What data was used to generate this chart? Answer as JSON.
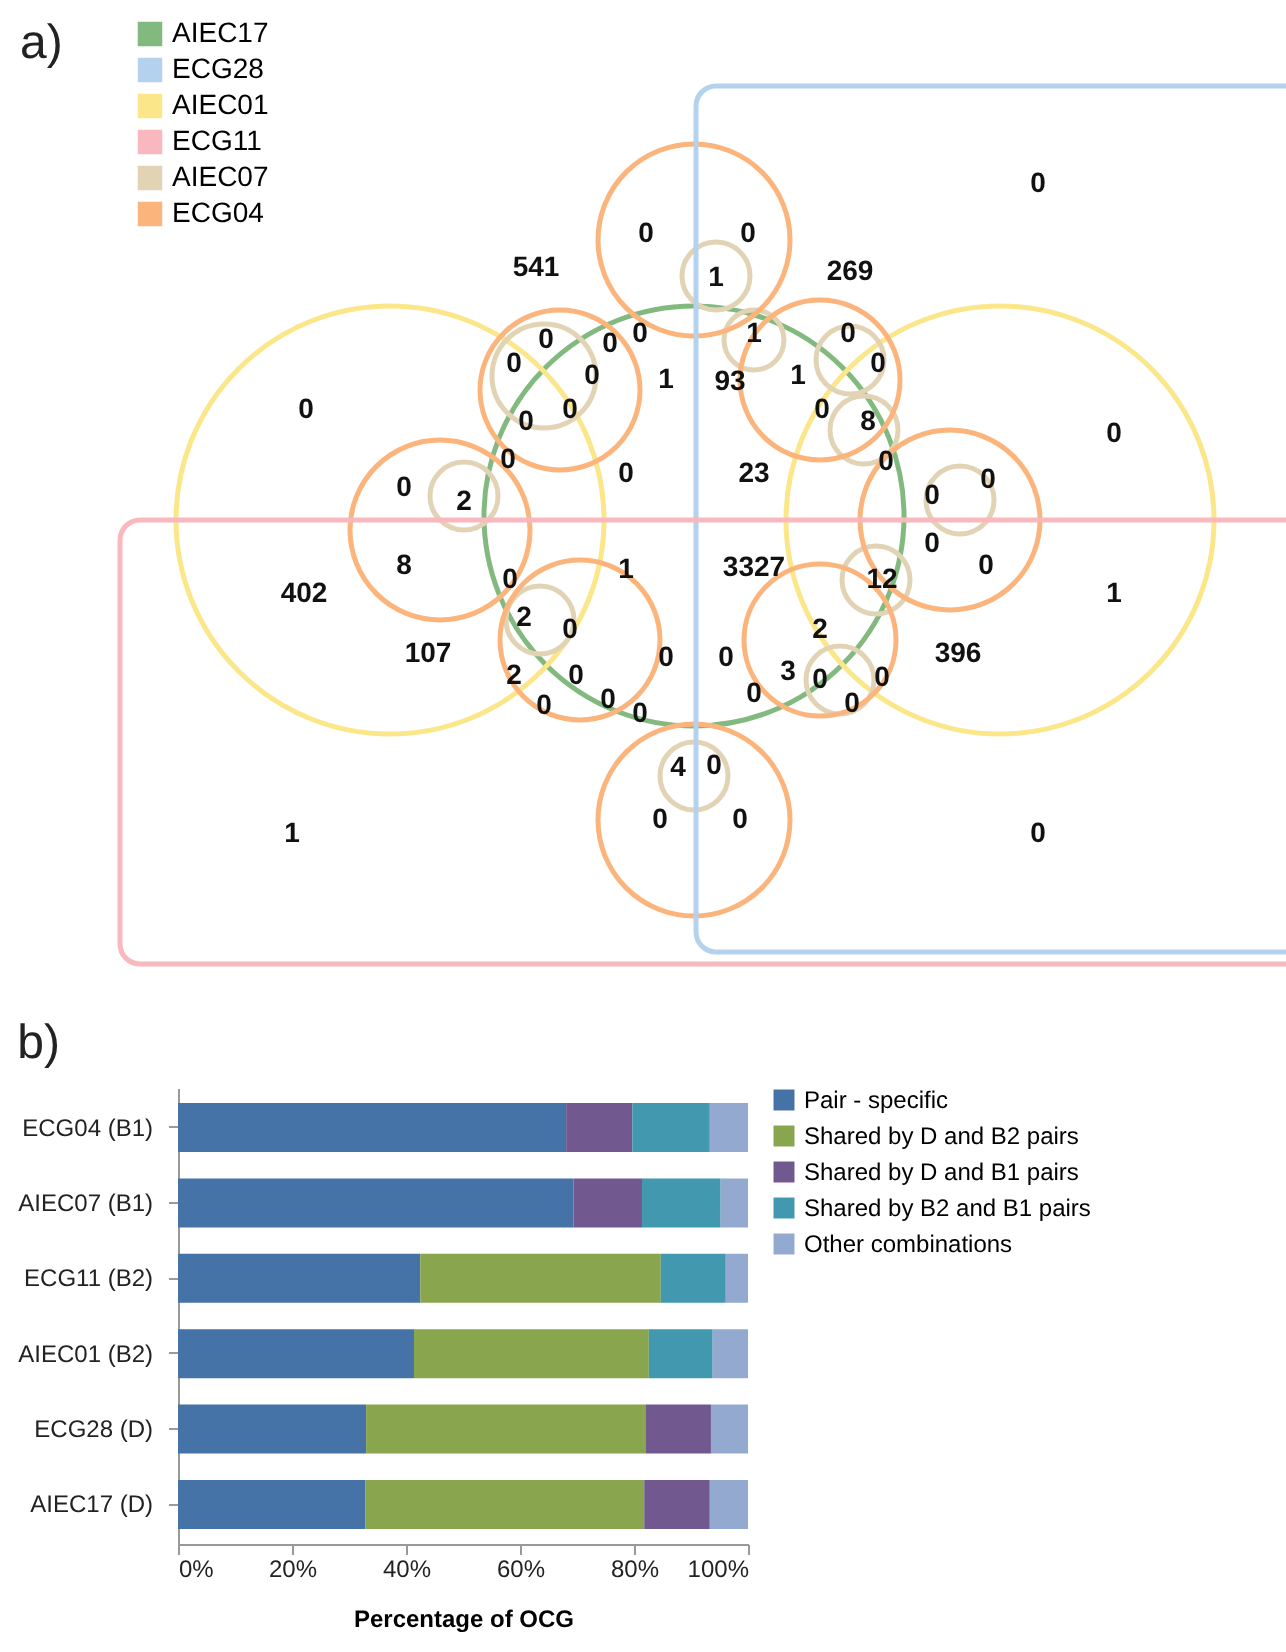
{
  "chart_data": [
    {
      "type": "other",
      "title": "a)",
      "categories": [
        "AIEC17",
        "ECG28",
        "AIEC01",
        "ECG11",
        "AIEC07",
        "ECG04"
      ],
      "colors": [
        "#82b97f",
        "#b4d2ee",
        "#fce68a",
        "#f9b8bd",
        "#e2d3b5",
        "#fbb57c"
      ],
      "annotations": [
        "541",
        "0",
        "0",
        "1",
        "269",
        "0",
        "0",
        "0",
        "0",
        "0",
        "0",
        "0",
        "0",
        "0",
        "0",
        "0",
        "2",
        "1",
        "93",
        "1",
        "1",
        "0",
        "0",
        "0",
        "8",
        "0",
        "0",
        "0",
        "0",
        "0",
        "0",
        "23",
        "402",
        "8",
        "107",
        "0",
        "2",
        "0",
        "2",
        "0",
        "0",
        "0",
        "0",
        "1",
        "1",
        "0",
        "1",
        "3327",
        "12",
        "2",
        "396",
        "0",
        "0",
        "0",
        "3",
        "0",
        "0",
        "0",
        "4",
        "0",
        "0",
        "0",
        "0"
      ]
    },
    {
      "type": "bar",
      "title": "b)",
      "orientation": "horizontal",
      "stacked": true,
      "legend": "right",
      "categories": [
        "ECG04 (B1)",
        "AIEC07 (B1)",
        "ECG11 (B2)",
        "AIEC01 (B2)",
        "ECG28 (D)",
        "AIEC17 (D)"
      ],
      "series": [
        {
          "name": "Pair - specific",
          "color": "#4572a7",
          "values": [
            68.1,
            69.4,
            42.5,
            41.4,
            33.0,
            32.9
          ]
        },
        {
          "name": "Shared by D and B2 pairs",
          "color": "#89a54e",
          "values": [
            null,
            null,
            42.2,
            41.2,
            49.0,
            48.9
          ]
        },
        {
          "name": "Shared by D and B1 pairs",
          "color": "#71588f",
          "values": [
            11.6,
            12.0,
            null,
            null,
            11.5,
            11.5
          ]
        },
        {
          "name": "Shared by B2 and B1 pairs",
          "color": "#4198af",
          "values": [
            13.6,
            13.8,
            11.4,
            11.2,
            null,
            null
          ]
        },
        {
          "name": "Other combinations",
          "color": "#93a9cf",
          "values": [
            6.7,
            4.8,
            3.9,
            6.2,
            6.5,
            6.7
          ]
        }
      ],
      "xlim": [
        0,
        100
      ],
      "xticks": [
        {
          "value": 0,
          "label": "0%"
        },
        {
          "value": 20,
          "label": "20%"
        },
        {
          "value": 40,
          "label": "40%"
        },
        {
          "value": 60,
          "label": "60%"
        },
        {
          "value": 80,
          "label": "80%"
        },
        {
          "value": 100,
          "label": "100%"
        }
      ],
      "xlabel": "Percentage of OCG"
    }
  ]
}
